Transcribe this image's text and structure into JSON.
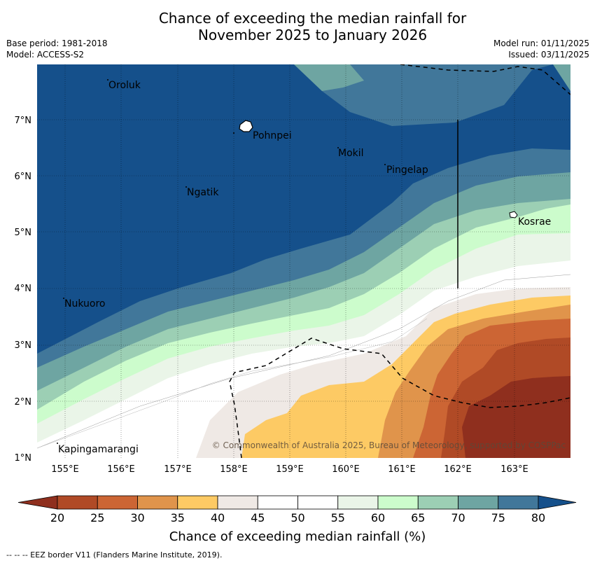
{
  "title": {
    "line1": "Chance of exceeding the median rainfall for",
    "line2": "November 2025 to January 2026"
  },
  "meta": {
    "base_period": "Base period: 1981-2018",
    "model": "Model: ACCESS-S2",
    "model_run": "Model run: 01/11/2025",
    "issued": "Issued: 03/11/2025"
  },
  "map": {
    "lat_ticks": [
      "1°N",
      "2°N",
      "3°N",
      "4°N",
      "5°N",
      "6°N",
      "7°N"
    ],
    "lon_ticks": [
      "155°E",
      "156°E",
      "157°E",
      "158°E",
      "159°E",
      "160°E",
      "161°E",
      "162°E",
      "163°E"
    ],
    "places": [
      "Oroluk",
      "Pohnpei",
      "Mokil",
      "Pingelap",
      "Ngatik",
      "Kosrae",
      "Nukuoro",
      "Kapingamarangi"
    ],
    "copyright": "© Commonwealth of Australia 2025, Bureau of Meteorology, supported by COSPPac"
  },
  "colorbar": {
    "ticks": [
      "20",
      "25",
      "30",
      "35",
      "40",
      "45",
      "50",
      "55",
      "60",
      "65",
      "70",
      "75",
      "80"
    ],
    "colors": [
      "#8f2f1e",
      "#b04a26",
      "#cc6534",
      "#e0944b",
      "#fdca64",
      "#efe9e5",
      "#ffffff",
      "#ffffff",
      "#eaf5e8",
      "#ccfccc",
      "#9ccfb4",
      "#6ea5a2",
      "#41779a",
      "#15508b"
    ],
    "label": "Chance of exceeding median rainfall (%)"
  },
  "footer": "--  --  -- EEZ border V11 (Flanders Marine Institute, 2019)."
}
